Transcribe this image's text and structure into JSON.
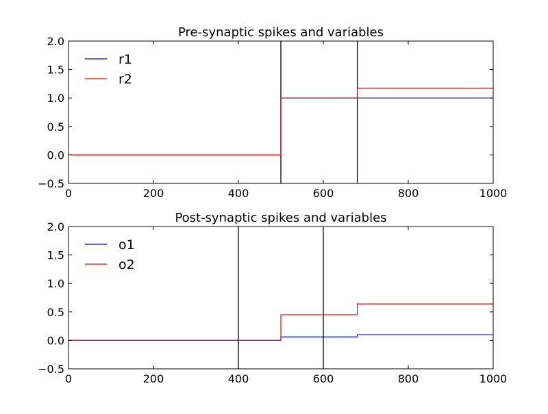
{
  "chart_data": [
    {
      "type": "line",
      "title": "Pre-synaptic spikes and variables",
      "xlabel": "",
      "ylabel": "",
      "xlim": [
        0,
        1000
      ],
      "ylim": [
        -0.5,
        2.0
      ],
      "xticks": [
        0,
        200,
        400,
        600,
        800,
        1000
      ],
      "yticks": [
        -0.5,
        0.0,
        0.5,
        1.0,
        1.5,
        2.0
      ],
      "xtick_labels": [
        "0",
        "200",
        "400",
        "600",
        "800",
        "1000"
      ],
      "ytick_labels": [
        "−0.5",
        "0.0",
        "0.5",
        "1.0",
        "1.5",
        "2.0"
      ],
      "grid": false,
      "legend_position": "top-left",
      "spikes": [
        500,
        680
      ],
      "spike_color": "#000000",
      "series": [
        {
          "name": "r1",
          "color": "#0000ff",
          "x": [
            0,
            500,
            500,
            680,
            680,
            1000
          ],
          "y": [
            0,
            0,
            1.0,
            1.0,
            1.0,
            1.0
          ]
        },
        {
          "name": "r2",
          "color": "#ff0000",
          "x": [
            0,
            500,
            500,
            680,
            680,
            1000
          ],
          "y": [
            0,
            0,
            1.0,
            1.0,
            1.17,
            1.17
          ]
        }
      ]
    },
    {
      "type": "line",
      "title": "Post-synaptic spikes and variables",
      "xlabel": "",
      "ylabel": "",
      "xlim": [
        0,
        1000
      ],
      "ylim": [
        -0.5,
        2.0
      ],
      "xticks": [
        0,
        200,
        400,
        600,
        800,
        1000
      ],
      "yticks": [
        -0.5,
        0.0,
        0.5,
        1.0,
        1.5,
        2.0
      ],
      "xtick_labels": [
        "0",
        "200",
        "400",
        "600",
        "800",
        "1000"
      ],
      "ytick_labels": [
        "−0.5",
        "0.0",
        "0.5",
        "1.0",
        "1.5",
        "2.0"
      ],
      "grid": false,
      "legend_position": "top-left",
      "spikes": [
        400,
        600
      ],
      "spike_color": "#000000",
      "series": [
        {
          "name": "o1",
          "color": "#0000ff",
          "x": [
            0,
            500,
            500,
            680,
            680,
            1000
          ],
          "y": [
            0,
            0,
            0.06,
            0.06,
            0.1,
            0.1
          ]
        },
        {
          "name": "o2",
          "color": "#ff0000",
          "x": [
            0,
            500,
            500,
            680,
            680,
            1000
          ],
          "y": [
            0,
            0,
            0.45,
            0.45,
            0.64,
            0.64
          ]
        }
      ]
    }
  ]
}
